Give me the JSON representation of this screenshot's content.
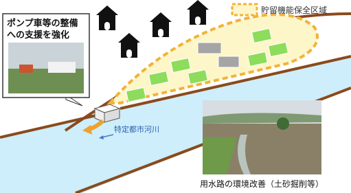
{
  "callout": {
    "lines": [
      "ポンプ車等の整備",
      "への支援を強化"
    ]
  },
  "legend": {
    "label": "貯留機能保全区域"
  },
  "river": {
    "label": "特定都市河川"
  },
  "photo_caption": "用水路の環境改善（土砂掘削等）"
}
